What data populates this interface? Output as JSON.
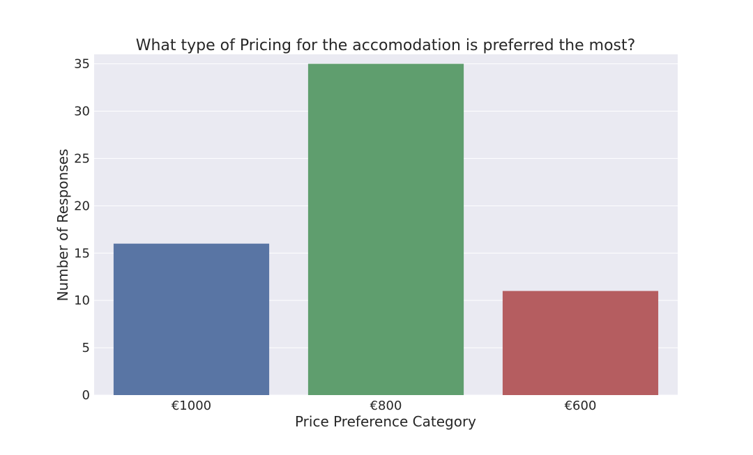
{
  "chart_data": {
    "type": "bar",
    "title": "What type of Pricing for the accomodation is preferred the most?",
    "xlabel": "Price Preference Category",
    "ylabel": "Number of Responses",
    "categories": [
      "€1000",
      "€800",
      "€600"
    ],
    "values": [
      16,
      35,
      11
    ],
    "colors": [
      "#5975a4",
      "#5f9e6e",
      "#b55d60"
    ],
    "ylim": [
      0,
      36
    ],
    "yticks": [
      0,
      5,
      10,
      15,
      20,
      25,
      30,
      35
    ],
    "grid": true,
    "legend": "none",
    "background": "#eaeaf2",
    "grid_color": "#ffffff"
  }
}
